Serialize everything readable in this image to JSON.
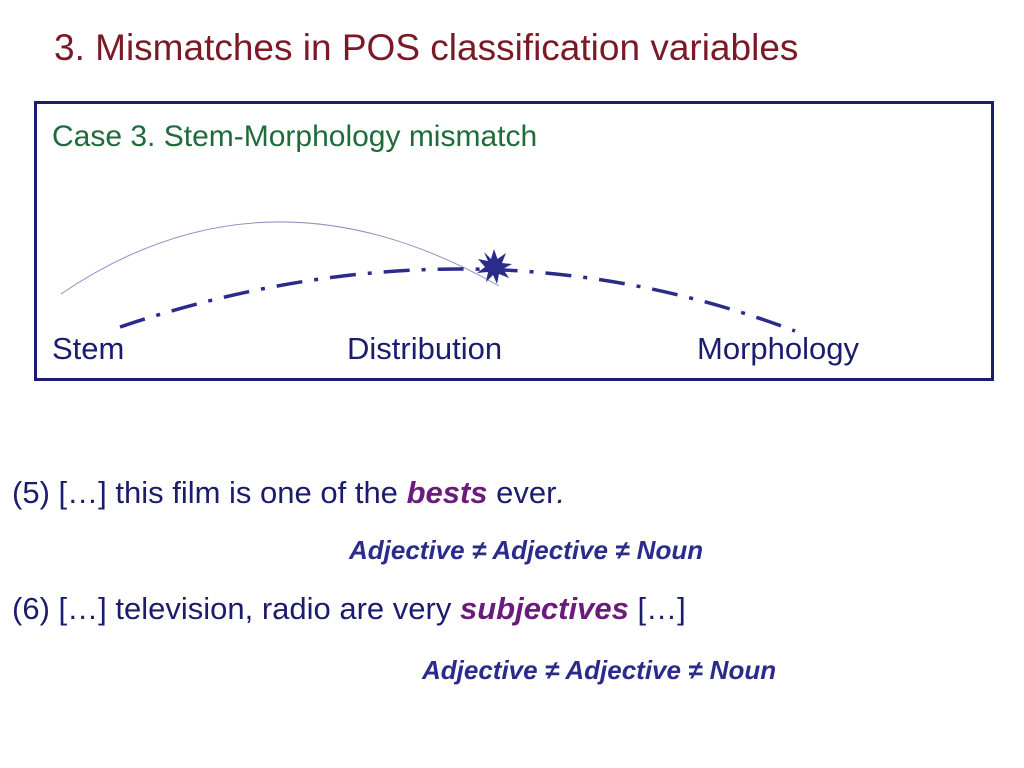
{
  "title": "3. Mismatches in POS classification variables",
  "case_box": {
    "heading": "Case 3. Stem-Morphology mismatch",
    "nodes": {
      "stem": "Stem",
      "distribution": "Distribution",
      "morphology": "Morphology"
    }
  },
  "examples": [
    {
      "number": "(5)",
      "before": "[…] this film is one of the",
      "keyword": "bests",
      "after": "ever",
      "end": ".",
      "gloss": "Adjective ≠ Adjective ≠ Noun"
    },
    {
      "number": "(6)",
      "before": "[…] television, radio are very",
      "keyword": "subjectives",
      "after": "[…]",
      "end": "",
      "gloss": "Adjective ≠ Adjective ≠ Noun"
    }
  ],
  "colors": {
    "title": "#7b1a26",
    "heading": "#1f6b3a",
    "text": "#1c1c6e",
    "keyword": "#6a1b7b",
    "gloss": "#2b2b8c",
    "arc": "#2b2b8c",
    "thin_arc": "#8e94c0"
  },
  "icons": {
    "mismatch_marker": "starburst-icon"
  }
}
